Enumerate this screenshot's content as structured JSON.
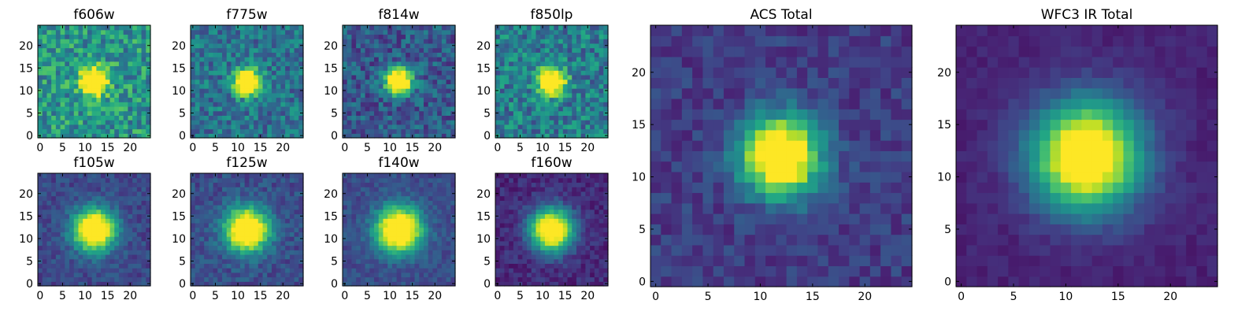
{
  "colormap": "viridis",
  "chart_data": [
    {
      "type": "heatmap",
      "title": "f606w",
      "image_size": 25,
      "source_center": [
        12,
        12
      ],
      "source_radius": 2.0,
      "source_peak": 1.0,
      "background": 0.52,
      "noise": 0.22,
      "xticks": [
        0,
        5,
        10,
        15,
        20
      ],
      "yticks": [
        0,
        5,
        10,
        15,
        20
      ]
    },
    {
      "type": "heatmap",
      "title": "f775w",
      "image_size": 25,
      "source_center": [
        12,
        12
      ],
      "source_radius": 2.0,
      "source_peak": 1.0,
      "background": 0.38,
      "noise": 0.18,
      "xticks": [
        0,
        5,
        10,
        15,
        20
      ],
      "yticks": [
        0,
        5,
        10,
        15,
        20
      ]
    },
    {
      "type": "heatmap",
      "title": "f814w",
      "image_size": 25,
      "source_center": [
        12,
        12
      ],
      "source_radius": 2.0,
      "source_peak": 1.0,
      "background": 0.28,
      "noise": 0.17,
      "xticks": [
        0,
        5,
        10,
        15,
        20
      ],
      "yticks": [
        0,
        5,
        10,
        15,
        20
      ]
    },
    {
      "type": "heatmap",
      "title": "f850lp",
      "image_size": 25,
      "source_center": [
        12,
        12
      ],
      "source_radius": 2.0,
      "source_peak": 1.0,
      "background": 0.42,
      "noise": 0.2,
      "xticks": [
        0,
        5,
        10,
        15,
        20
      ],
      "yticks": [
        0,
        5,
        10,
        15,
        20
      ]
    },
    {
      "type": "heatmap",
      "title": "f105w",
      "image_size": 25,
      "source_center": [
        12,
        12
      ],
      "source_radius": 3.2,
      "source_peak": 1.0,
      "background": 0.22,
      "noise": 0.09,
      "xticks": [
        0,
        5,
        10,
        15,
        20
      ],
      "yticks": [
        0,
        5,
        10,
        15,
        20
      ]
    },
    {
      "type": "heatmap",
      "title": "f125w",
      "image_size": 25,
      "source_center": [
        12,
        12
      ],
      "source_radius": 3.3,
      "source_peak": 1.0,
      "background": 0.24,
      "noise": 0.1,
      "xticks": [
        0,
        5,
        10,
        15,
        20
      ],
      "yticks": [
        0,
        5,
        10,
        15,
        20
      ]
    },
    {
      "type": "heatmap",
      "title": "f140w",
      "image_size": 25,
      "source_center": [
        12,
        12
      ],
      "source_radius": 3.4,
      "source_peak": 1.0,
      "background": 0.24,
      "noise": 0.08,
      "xticks": [
        0,
        5,
        10,
        15,
        20
      ],
      "yticks": [
        0,
        5,
        10,
        15,
        20
      ]
    },
    {
      "type": "heatmap",
      "title": "f160w",
      "image_size": 25,
      "source_center": [
        12,
        12
      ],
      "source_radius": 3.3,
      "source_peak": 1.0,
      "background": 0.12,
      "noise": 0.08,
      "xticks": [
        0,
        5,
        10,
        15,
        20
      ],
      "yticks": [
        0,
        5,
        10,
        15,
        20
      ]
    },
    {
      "type": "heatmap",
      "title": "ACS Total",
      "image_size": 25,
      "source_center": [
        12,
        12
      ],
      "source_radius": 2.6,
      "source_peak": 1.0,
      "background": 0.18,
      "noise": 0.09,
      "xticks": [
        0,
        5,
        10,
        15,
        20
      ],
      "yticks": [
        0,
        5,
        10,
        15,
        20
      ]
    },
    {
      "type": "heatmap",
      "title": "WFC3 IR Total",
      "image_size": 25,
      "source_center": [
        12,
        12
      ],
      "source_radius": 3.6,
      "source_peak": 1.0,
      "background": 0.1,
      "noise": 0.04,
      "xticks": [
        0,
        5,
        10,
        15,
        20
      ],
      "yticks": [
        0,
        5,
        10,
        15,
        20
      ]
    }
  ]
}
